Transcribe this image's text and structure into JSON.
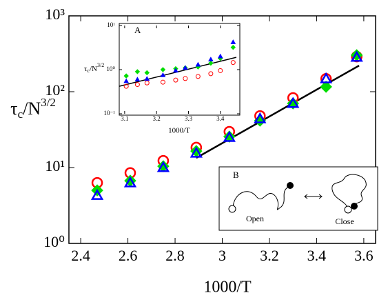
{
  "chart_data": [
    {
      "type": "scatter",
      "log_y": true,
      "xlabel": "1000/T",
      "ylabel": {
        "base": "τ",
        "sub": "c",
        "mid": "/N",
        "sup": "3/2"
      },
      "xlim": [
        2.35,
        3.65
      ],
      "ylim": [
        1,
        1000
      ],
      "xticks": [
        2.4,
        2.6,
        2.8,
        3,
        3.2,
        3.4,
        3.6
      ],
      "yticks": [
        {
          "value": 1,
          "label": "10⁰"
        },
        {
          "value": 10,
          "label": "10¹"
        },
        {
          "value": 100,
          "label": "10²"
        },
        {
          "value": 1000,
          "label": "10³"
        }
      ],
      "x": [
        2.47,
        2.61,
        2.75,
        2.89,
        3.03,
        3.16,
        3.3,
        3.44,
        3.57
      ],
      "series": [
        {
          "color": "#ff0000",
          "marker": "circle",
          "filled": false,
          "values": [
            6.3,
            8.5,
            12.3,
            18.4,
            29.7,
            48,
            82.8,
            148,
            290
          ]
        },
        {
          "color": "#00dd00",
          "marker": "diamond",
          "filled": true,
          "values": [
            5.0,
            6.7,
            10.4,
            16.5,
            25.6,
            41.5,
            70,
            116,
            303
          ]
        },
        {
          "color": "#0000ff",
          "marker": "triangle",
          "filled": false,
          "values": [
            4.3,
            6.3,
            10,
            15.5,
            25,
            44,
            70,
            148,
            285
          ]
        }
      ],
      "fit_line": {
        "color": "#000000",
        "x": [
          2.89,
          3.58
        ],
        "values": [
          13.4,
          221
        ]
      }
    },
    {
      "type": "scatter",
      "log_y": true,
      "annotation": "A",
      "xlabel": "1000/T",
      "ylabel": {
        "base": "τ",
        "sub": "c",
        "mid": "/N",
        "sup": "3/2"
      },
      "xlim": [
        3.083,
        3.461
      ],
      "ylim": [
        0.1,
        10
      ],
      "xticks": [
        3.1,
        3.2,
        3.3,
        3.4
      ],
      "yticks": [
        {
          "value": 0.1,
          "label": "10⁻¹"
        },
        {
          "value": 1,
          "label": "10⁰"
        },
        {
          "value": 10,
          "label": "10¹"
        }
      ],
      "x": [
        3.105,
        3.14,
        3.17,
        3.22,
        3.26,
        3.29,
        3.33,
        3.37,
        3.4,
        3.44
      ],
      "series": [
        {
          "color": "#ff0000",
          "marker": "circle",
          "filled": false,
          "values": [
            0.42,
            0.46,
            0.5,
            0.52,
            0.58,
            0.63,
            0.7,
            0.81,
            0.95,
            1.45
          ]
        },
        {
          "color": "#00dd00",
          "marker": "diamond",
          "filled": true,
          "values": [
            0.72,
            0.9,
            0.85,
            1.0,
            1.05,
            1.1,
            1.15,
            1.4,
            1.8,
            3.2
          ]
        },
        {
          "color": "#0000ff",
          "marker": "triangle",
          "filled": true,
          "values": [
            0.55,
            0.6,
            0.62,
            0.75,
            0.95,
            1.1,
            1.3,
            1.7,
            2.0,
            4.2
          ]
        }
      ],
      "fit_line": {
        "color": "#000000",
        "x": [
          3.083,
          3.45
        ],
        "values": [
          0.42,
          1.9
        ]
      }
    }
  ],
  "diagram": {
    "label": "B",
    "open": "Open",
    "close": "Close"
  }
}
